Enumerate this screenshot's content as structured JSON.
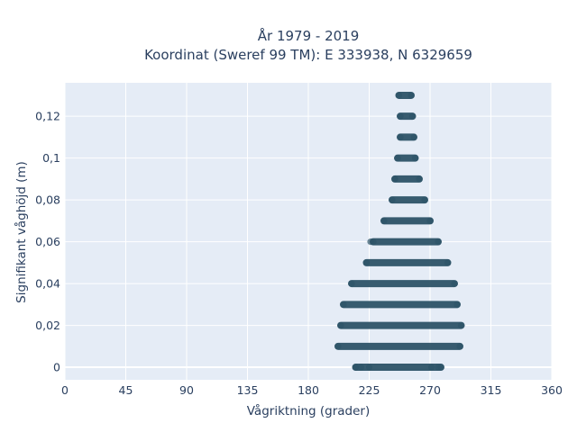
{
  "chart_data": {
    "type": "scatter",
    "title_line1": "År 1979 - 2019",
    "title_line2": "Koordinat (Sweref 99 TM): E 333938, N 6329659",
    "xlabel": "Vågriktning (grader)",
    "ylabel": "Signifikant våghöjd (m)",
    "xlim": [
      0,
      360
    ],
    "ylim": [
      -0.006,
      0.136
    ],
    "xticks": [
      0,
      45,
      90,
      135,
      180,
      225,
      270,
      315,
      360
    ],
    "yticks": [
      0,
      0.02,
      0.04,
      0.06,
      0.08,
      0.1,
      0.12
    ],
    "ytick_labels": [
      "0",
      "0,02",
      "0,04",
      "0,06",
      "0,08",
      "0,1",
      "0,12"
    ],
    "grid": true,
    "marker_color": "#2e5468",
    "plot_background": "#e5ecf6",
    "bands": [
      {
        "y": 0.0,
        "x_min": 215,
        "x_max": 278
      },
      {
        "y": 0.01,
        "x_min": 202,
        "x_max": 292
      },
      {
        "y": 0.02,
        "x_min": 204,
        "x_max": 293
      },
      {
        "y": 0.03,
        "x_min": 206,
        "x_max": 290
      },
      {
        "y": 0.04,
        "x_min": 212,
        "x_max": 288
      },
      {
        "y": 0.05,
        "x_min": 223,
        "x_max": 283
      },
      {
        "y": 0.06,
        "x_min": 228,
        "x_max": 276
      },
      {
        "y": 0.07,
        "x_min": 236,
        "x_max": 270
      },
      {
        "y": 0.08,
        "x_min": 242,
        "x_max": 266
      },
      {
        "y": 0.09,
        "x_min": 244,
        "x_max": 262
      },
      {
        "y": 0.1,
        "x_min": 246,
        "x_max": 259
      },
      {
        "y": 0.11,
        "x_min": 248,
        "x_max": 258
      },
      {
        "y": 0.12,
        "x_min": 248,
        "x_max": 257
      },
      {
        "y": 0.13,
        "x_min": 247,
        "x_max": 256
      }
    ],
    "outliers": [
      {
        "x": 215,
        "y": 0.0
      },
      {
        "x": 219,
        "y": 0.0
      },
      {
        "x": 225,
        "y": 0.0
      },
      {
        "x": 271,
        "y": 0.0
      },
      {
        "x": 276,
        "y": 0.0
      },
      {
        "x": 226,
        "y": 0.06
      },
      {
        "x": 244,
        "y": 0.09
      }
    ]
  }
}
